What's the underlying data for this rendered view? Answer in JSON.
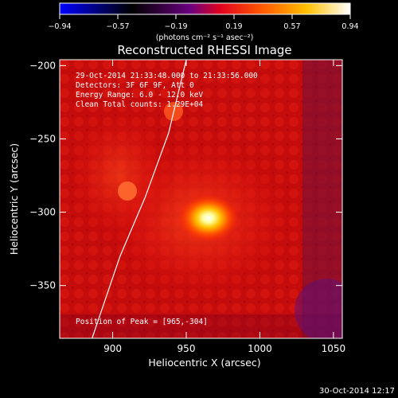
{
  "colorbar": {
    "ticks": [
      "-0.94",
      "-0.57",
      "-0.19",
      "0.19",
      "0.57",
      "0.94"
    ],
    "unit": "(photons cm⁻² s⁻¹ asec⁻²)",
    "colors": [
      "#0000ff",
      "#000000",
      "#6a0080",
      "#ff0000",
      "#ff8000",
      "#ffff00",
      "#ffffff"
    ]
  },
  "chart_data": {
    "type": "heatmap",
    "title": "Reconstructed RHESSI Image",
    "xlabel": "Heliocentric X (arcsec)",
    "ylabel": "Heliocentric Y (arcsec)",
    "xlim": [
      864,
      1056
    ],
    "ylim": [
      -386,
      -196
    ],
    "xticks": [
      900,
      950,
      1000,
      1050
    ],
    "yticks": [
      -200,
      -250,
      -300,
      -350
    ],
    "peak": {
      "x": 965,
      "y": -304
    },
    "limb_curve": [
      [
        886,
        -386
      ],
      [
        905,
        -330
      ],
      [
        922,
        -290
      ],
      [
        938,
        -246
      ],
      [
        950,
        -196
      ]
    ],
    "annotations": [
      "29-Oct-2014 21:33:48.000 to 21:33:56.000",
      "Detectors: 3F 6F 9F, Att 0",
      "Energy Range: 6.0 - 12.0 keV",
      "Clean    Total counts: 1.29E+04"
    ],
    "peak_label": "Position of Peak = [965,-304]"
  },
  "footer": {
    "date": "30-Oct-2014 12:17"
  }
}
